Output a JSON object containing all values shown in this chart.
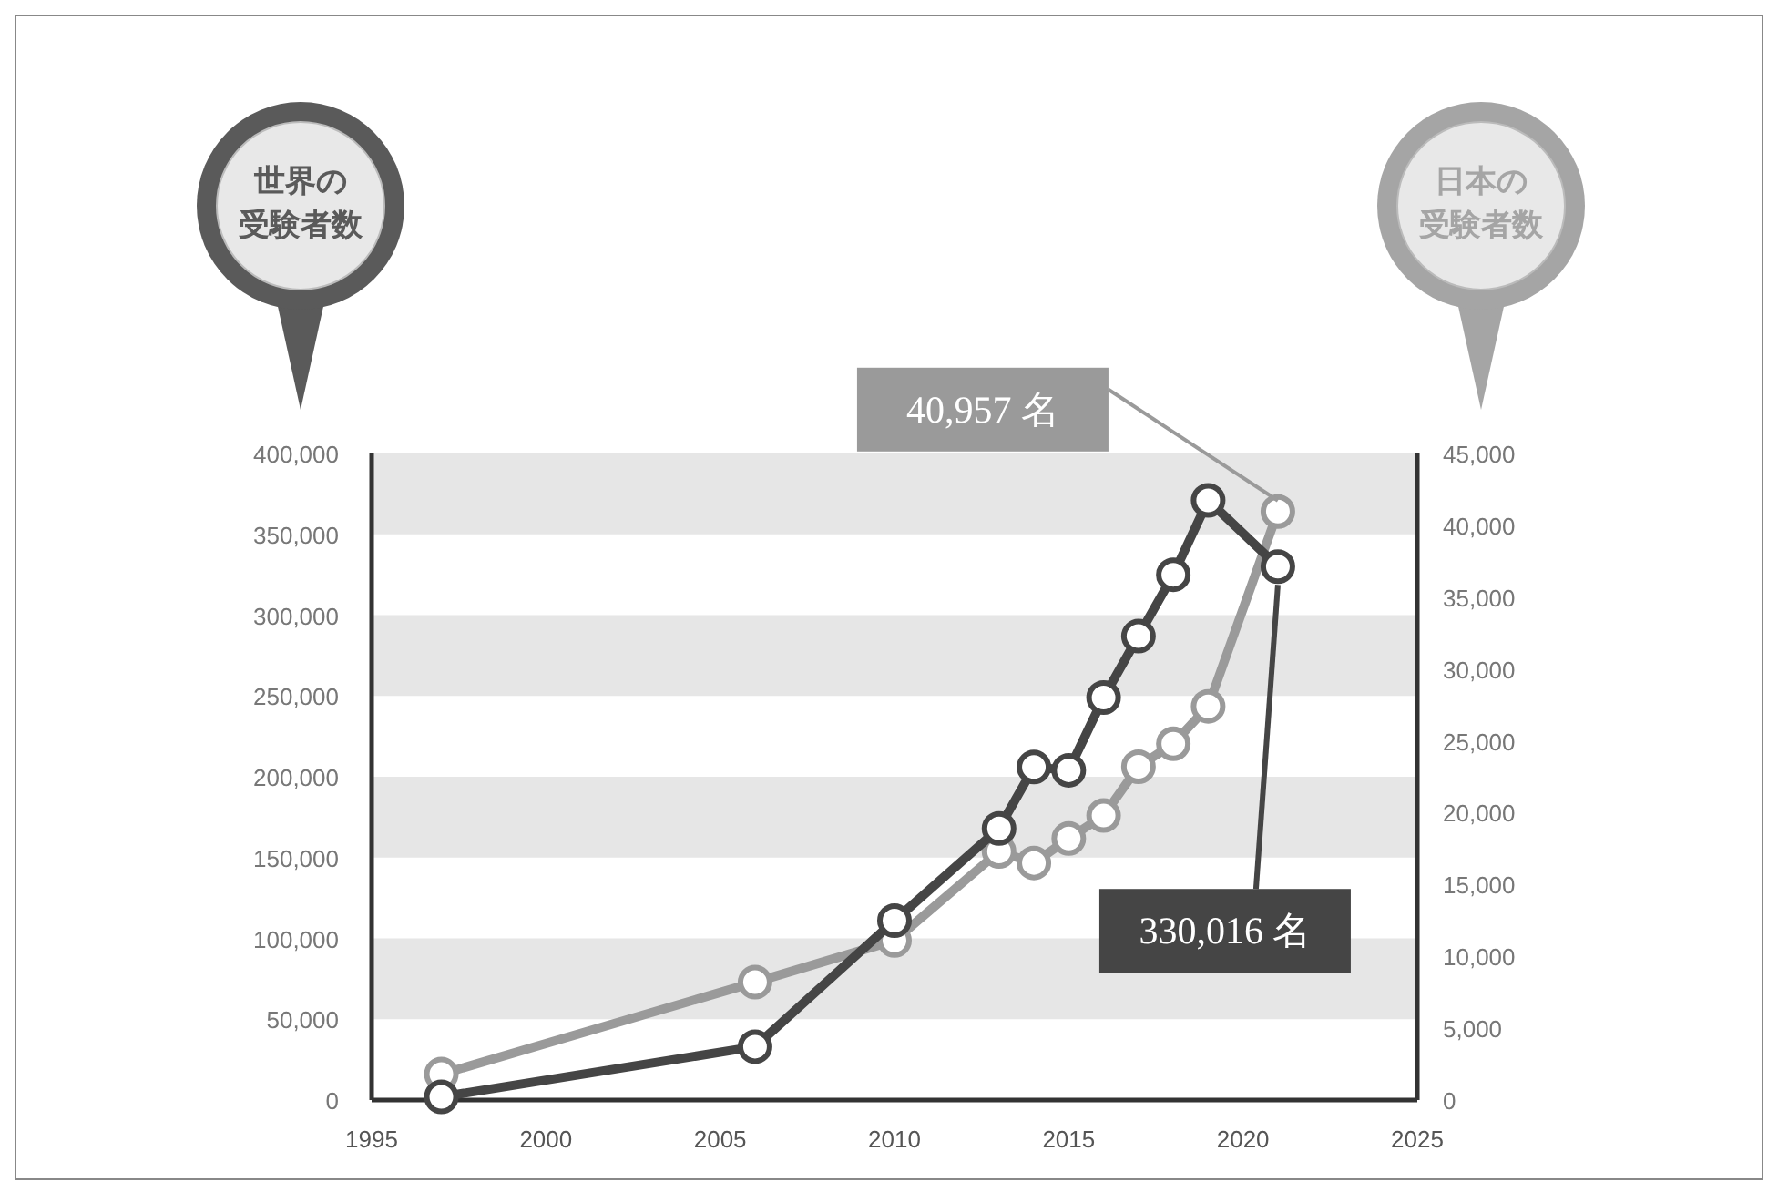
{
  "chart_data": {
    "type": "line",
    "annotations": [
      "世界の受験者数",
      "日本の受験者数"
    ],
    "bands": [
      {
        "axis": "y",
        "from": 350000,
        "to": 400000,
        "color": "#e6e6e6"
      },
      {
        "axis": "y",
        "from": 250000,
        "to": 300000,
        "color": "#e6e6e6"
      },
      {
        "axis": "y",
        "from": 150000,
        "to": 200000,
        "color": "#e6e6e6"
      },
      {
        "axis": "y",
        "from": 50000,
        "to": 100000,
        "color": "#e6e6e6"
      }
    ],
    "xlim": [
      1995,
      2025
    ],
    "xticks": [
      1995,
      2000,
      2005,
      2010,
      2015,
      2020,
      2025
    ],
    "ylim": [
      0,
      400000
    ],
    "yticks": [
      {
        "value": 0,
        "label": "0"
      },
      {
        "value": 50000,
        "label": "50,000"
      },
      {
        "value": 100000,
        "label": "100,000"
      },
      {
        "value": 150000,
        "label": "150,000"
      },
      {
        "value": 200000,
        "label": "200,000"
      },
      {
        "value": 250000,
        "label": "250,000"
      },
      {
        "value": 300000,
        "label": "300,000"
      },
      {
        "value": 350000,
        "label": "350,000"
      },
      {
        "value": 400000,
        "label": "400,000"
      }
    ],
    "y2lim": [
      0,
      45000
    ],
    "y2ticks": [
      {
        "value": 0,
        "label": "0"
      },
      {
        "value": 5000,
        "label": "5,000"
      },
      {
        "value": 10000,
        "label": "10,000"
      },
      {
        "value": 15000,
        "label": "15,000"
      },
      {
        "value": 20000,
        "label": "20,000"
      },
      {
        "value": 25000,
        "label": "25,000"
      },
      {
        "value": 30000,
        "label": "30,000"
      },
      {
        "value": 35000,
        "label": "35,000"
      },
      {
        "value": 40000,
        "label": "40,000"
      },
      {
        "value": 45000,
        "label": "45,000"
      }
    ],
    "marker": "circle",
    "line_style": "solid",
    "series": [
      {
        "color": "#454545",
        "x": [
          1997,
          2006,
          2010,
          2013,
          2014,
          2015,
          2016,
          2017,
          2018,
          2019,
          2021
        ],
        "values": [
          2000,
          33000,
          111000,
          168000,
          206000,
          204000,
          249000,
          287000,
          325000,
          371000,
          330016
        ],
        "value_labels": [
          null,
          null,
          null,
          null,
          null,
          null,
          null,
          null,
          null,
          null,
          "330,016 名"
        ]
      },
      {
        "color": "#9a9a9a",
        "axis": "y2",
        "x": [
          1997,
          2006,
          2010,
          2013,
          2014,
          2015,
          2016,
          2017,
          2018,
          2019,
          2021
        ],
        "values": [
          1800,
          8200,
          11100,
          17300,
          16500,
          18200,
          19800,
          23200,
          24800,
          27400,
          40957
        ],
        "value_labels": [
          null,
          null,
          null,
          null,
          null,
          null,
          null,
          null,
          null,
          null,
          "40,957 名"
        ]
      }
    ]
  }
}
